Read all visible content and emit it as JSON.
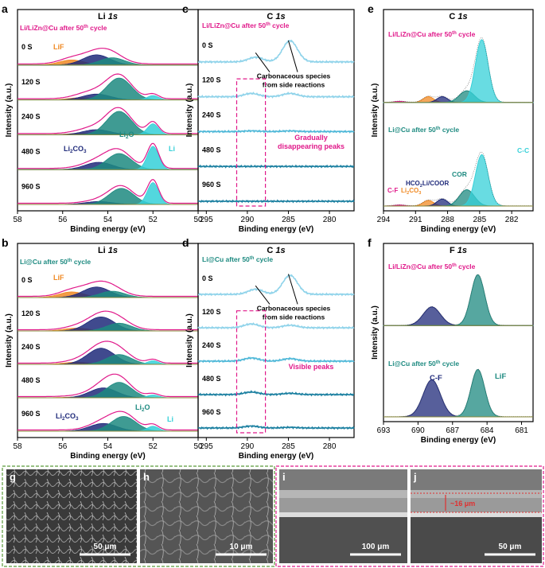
{
  "colors": {
    "pink": "#e0198a",
    "teal": "#1d8a80",
    "navy": "#1f2a7a",
    "orange": "#f08a24",
    "cyan": "#35d0d8",
    "gray_teal": "#6b8e87",
    "light_blue": "#8fd3ea",
    "mid_blue": "#4fb8d8",
    "dark_blue": "#1a7fa0",
    "olive": "#8a8a3a"
  },
  "panel_letters": [
    "a",
    "b",
    "c",
    "d",
    "e",
    "f",
    "g",
    "h",
    "i",
    "j"
  ],
  "chart_data": [
    {
      "id": "a",
      "type": "line",
      "title_main": "Li ",
      "title_orbital": "1s",
      "sample": "Li/LiZn@Cu after 50",
      "sample_sup": "th",
      "sample_tail": " cycle",
      "xlabel": "Binding energy (eV)",
      "ylabel": "Intensity (a.u.)",
      "xlim": [
        58,
        50
      ],
      "xticks": [
        "58",
        "56",
        "54",
        "52",
        "50"
      ],
      "xticks_at": [
        58,
        56,
        54,
        52,
        50
      ],
      "series": [
        {
          "name": "0 S",
          "components": [
            {
              "name": "LiF",
              "center": 55.6,
              "amp": 0.35
            },
            {
              "name": "Li2CO3",
              "center": 54.5,
              "amp": 0.7
            },
            {
              "name": "Li2O",
              "center": 53.8,
              "amp": 0.5
            },
            {
              "name": "Li",
              "center": 52.1,
              "amp": 0.0
            }
          ]
        },
        {
          "name": "120 S",
          "components": [
            {
              "name": "LiF",
              "center": 55.2,
              "amp": 0.15
            },
            {
              "name": "Li2CO3",
              "center": 54.5,
              "amp": 0.4
            },
            {
              "name": "Li2O",
              "center": 53.5,
              "amp": 1.5
            },
            {
              "name": "Li",
              "center": 52.0,
              "amp": 0.3
            }
          ]
        },
        {
          "name": "240 S",
          "components": [
            {
              "name": "LiF",
              "center": 55.2,
              "amp": 0.1
            },
            {
              "name": "Li2CO3",
              "center": 54.5,
              "amp": 0.35
            },
            {
              "name": "Li2O",
              "center": 53.5,
              "amp": 1.6
            },
            {
              "name": "Li",
              "center": 52.0,
              "amp": 0.75
            }
          ]
        },
        {
          "name": "480 S",
          "components": [
            {
              "name": "LiF",
              "center": 55.2,
              "amp": 0.05
            },
            {
              "name": "Li2CO3",
              "center": 54.4,
              "amp": 0.5
            },
            {
              "name": "Li2O",
              "center": 53.5,
              "amp": 1.1
            },
            {
              "name": "Li",
              "center": 52.0,
              "amp": 1.6
            }
          ]
        },
        {
          "name": "960 S",
          "components": [
            {
              "name": "LiF",
              "center": 55.2,
              "amp": 0.0
            },
            {
              "name": "Li2CO3",
              "center": 54.4,
              "amp": 0.2
            },
            {
              "name": "Li2O",
              "center": 53.4,
              "amp": 1.1
            },
            {
              "name": "Li",
              "center": 52.0,
              "amp": 1.5
            }
          ]
        }
      ],
      "labels": {
        "LiF": "LiF",
        "Li2CO3_main": "Li",
        "Li2CO3_sub": "2",
        "Li2CO3_tail": "CO",
        "Li2CO3_sub2": "3",
        "Li2O_main": "Li",
        "Li2O_sub": "2",
        "Li2O_tail": "O",
        "Li": "Li"
      }
    },
    {
      "id": "b",
      "type": "line",
      "title_main": "Li ",
      "title_orbital": "1s",
      "sample": "Li@Cu after 50",
      "sample_sup": "th",
      "sample_tail": " cycle",
      "xlabel": "Binding energy (eV)",
      "ylabel": "Intensity (a.u.)",
      "xlim": [
        58,
        50
      ],
      "xticks": [
        "58",
        "56",
        "54",
        "52",
        "50"
      ],
      "xticks_at": [
        58,
        56,
        54,
        52,
        50
      ],
      "series": [
        {
          "name": "0 S",
          "components": [
            {
              "name": "LiF",
              "center": 55.6,
              "amp": 0.4
            },
            {
              "name": "Li2CO3",
              "center": 54.5,
              "amp": 0.75
            },
            {
              "name": "Li2O",
              "center": 53.8,
              "amp": 0.45
            },
            {
              "name": "Li",
              "center": 52.1,
              "amp": 0.0
            }
          ]
        },
        {
          "name": "120 S",
          "components": [
            {
              "name": "LiF",
              "center": 55.4,
              "amp": 0.2
            },
            {
              "name": "Li2CO3",
              "center": 54.3,
              "amp": 1.0
            },
            {
              "name": "Li2O",
              "center": 53.5,
              "amp": 0.55
            },
            {
              "name": "Li",
              "center": 52.0,
              "amp": 0.0
            }
          ]
        },
        {
          "name": "240 S",
          "components": [
            {
              "name": "LiF",
              "center": 55.4,
              "amp": 0.15
            },
            {
              "name": "Li2CO3",
              "center": 54.3,
              "amp": 1.15
            },
            {
              "name": "Li2O",
              "center": 53.5,
              "amp": 0.7
            },
            {
              "name": "Li",
              "center": 52.0,
              "amp": 0.25
            }
          ]
        },
        {
          "name": "480 S",
          "components": [
            {
              "name": "LiF",
              "center": 55.4,
              "amp": 0.05
            },
            {
              "name": "Li2CO3",
              "center": 54.2,
              "amp": 0.7
            },
            {
              "name": "Li2O",
              "center": 53.5,
              "amp": 1.1
            },
            {
              "name": "Li",
              "center": 52.0,
              "amp": 0.2
            }
          ]
        },
        {
          "name": "960 S",
          "components": [
            {
              "name": "LiF",
              "center": 55.4,
              "amp": 0.0
            },
            {
              "name": "Li2CO3",
              "center": 54.2,
              "amp": 0.55
            },
            {
              "name": "Li2O",
              "center": 53.3,
              "amp": 1.05
            },
            {
              "name": "Li",
              "center": 52.0,
              "amp": 0.35
            }
          ]
        }
      ],
      "labels": {
        "LiF": "LiF",
        "Li2CO3_main": "Li",
        "Li2CO3_sub": "2",
        "Li2CO3_tail": "CO",
        "Li2CO3_sub2": "3",
        "Li2O_main": "Li",
        "Li2O_sub": "2",
        "Li2O_tail": "O",
        "Li": "Li"
      }
    },
    {
      "id": "c",
      "type": "line",
      "title_main": "C ",
      "title_orbital": "1s",
      "sample": "Li/LiZn@Cu after 50",
      "sample_sup": "th",
      "sample_tail": " cycle",
      "xlabel": "Binding energy (eV)",
      "ylabel": "Intensity (a.u.)",
      "xlim": [
        296,
        277
      ],
      "xticks": [
        "295",
        "290",
        "285",
        "280"
      ],
      "xticks_at": [
        295,
        290,
        285,
        280
      ],
      "series": [
        {
          "name": "0 S",
          "peaks": [
            {
              "center": 289.0,
              "amp": 0.35
            },
            {
              "center": 284.8,
              "amp": 1.6
            }
          ]
        },
        {
          "name": "120 S",
          "peaks": [
            {
              "center": 289.5,
              "amp": 0.25
            },
            {
              "center": 284.8,
              "amp": 0.25
            }
          ]
        },
        {
          "name": "240 S",
          "peaks": [
            {
              "center": 289.5,
              "amp": 0.05
            },
            {
              "center": 284.8,
              "amp": 0.05
            }
          ]
        },
        {
          "name": "480 S",
          "peaks": [
            {
              "center": 289.5,
              "amp": 0.0
            },
            {
              "center": 284.8,
              "amp": 0.0
            }
          ]
        },
        {
          "name": "960 S",
          "peaks": [
            {
              "center": 289.5,
              "amp": 0.0
            },
            {
              "center": 284.8,
              "amp": 0.0
            }
          ]
        }
      ],
      "annotation": [
        "Carbonaceous species",
        "from side reactions"
      ],
      "note": [
        "Gradually",
        "disappearing peaks"
      ]
    },
    {
      "id": "d",
      "type": "line",
      "title_main": "C ",
      "title_orbital": "1s",
      "sample": "Li@Cu after 50",
      "sample_sup": "th",
      "sample_tail": " cycle",
      "xlabel": "Binding energy (eV)",
      "ylabel": "Intensity (a.u.)",
      "xlim": [
        296,
        277
      ],
      "xticks": [
        "295",
        "290",
        "285",
        "280"
      ],
      "xticks_at": [
        295,
        290,
        285,
        280
      ],
      "series": [
        {
          "name": "0 S",
          "peaks": [
            {
              "center": 289.0,
              "amp": 0.4
            },
            {
              "center": 284.8,
              "amp": 1.5
            }
          ]
        },
        {
          "name": "120 S",
          "peaks": [
            {
              "center": 289.5,
              "amp": 0.3
            },
            {
              "center": 284.8,
              "amp": 0.2
            }
          ]
        },
        {
          "name": "240 S",
          "peaks": [
            {
              "center": 289.5,
              "amp": 0.25
            },
            {
              "center": 284.8,
              "amp": 0.2
            }
          ]
        },
        {
          "name": "480 S",
          "peaks": [
            {
              "center": 289.5,
              "amp": 0.2
            },
            {
              "center": 284.8,
              "amp": 0.1
            }
          ]
        },
        {
          "name": "960 S",
          "peaks": [
            {
              "center": 289.5,
              "amp": 0.15
            },
            {
              "center": 284.8,
              "amp": 0.05
            }
          ]
        }
      ],
      "annotation": [
        "Carbonaceous species",
        "from side reactions"
      ],
      "note": [
        "Visible  peaks"
      ]
    },
    {
      "id": "e",
      "type": "line",
      "title_main": "C ",
      "title_orbital": "1s",
      "xlabel": "Binding energy (eV)",
      "ylabel": "Intensity (a.u.)",
      "xlim": [
        294,
        280
      ],
      "xticks": [
        "294",
        "291",
        "288",
        "285",
        "282"
      ],
      "xticks_at": [
        294,
        291,
        288,
        285,
        282
      ],
      "series": [
        {
          "name": "Li/LiZn@Cu after 50th cycle",
          "components": [
            {
              "name": "C-F",
              "center": 292.5,
              "amp": 0.03
            },
            {
              "name": "Li2CO3",
              "center": 289.8,
              "amp": 0.15
            },
            {
              "name": "HCO2Li/COOR",
              "center": 288.5,
              "amp": 0.15
            },
            {
              "name": "COR",
              "center": 286.2,
              "amp": 0.3
            },
            {
              "name": "C-C",
              "center": 284.8,
              "amp": 1.6
            }
          ]
        },
        {
          "name": "Li@Cu after 50th cycle",
          "components": [
            {
              "name": "C-F",
              "center": 292.5,
              "amp": 0.02
            },
            {
              "name": "Li2CO3",
              "center": 289.8,
              "amp": 0.12
            },
            {
              "name": "HCO2Li/COOR",
              "center": 288.5,
              "amp": 0.15
            },
            {
              "name": "COR",
              "center": 286.2,
              "amp": 0.35
            },
            {
              "name": "C-C",
              "center": 284.8,
              "amp": 1.1
            }
          ]
        }
      ],
      "sample_top": "Li/LiZn@Cu after 50",
      "sample_top_sup": "th",
      "sample_top_tail": " cycle",
      "sample_bot": "Li@Cu after 50",
      "sample_bot_sup": "th",
      "sample_bot_tail": " cycle",
      "labels": {
        "CC": "C-C",
        "COR": "COR",
        "HCO": "HCO",
        "HCO_sub": "2",
        "HCO_tail": "Li/COOR",
        "CF": "C-F",
        "Li2CO3_main": "Li",
        "Li2CO3_sub": "2",
        "Li2CO3_tail": "CO",
        "Li2CO3_sub2": "3"
      }
    },
    {
      "id": "f",
      "type": "line",
      "title_main": "F ",
      "title_orbital": "1s",
      "xlabel": "Binding energy (eV)",
      "ylabel": "Intensity (a.u.)",
      "xlim": [
        693,
        680
      ],
      "xticks": [
        "693",
        "690",
        "687",
        "684",
        "681"
      ],
      "xticks_at": [
        693,
        690,
        687,
        684,
        681
      ],
      "series": [
        {
          "name": "Li/LiZn@Cu after 50th cycle",
          "components": [
            {
              "name": "C-F",
              "center": 688.8,
              "amp": 0.55
            },
            {
              "name": "LiF",
              "center": 684.8,
              "amp": 1.5
            }
          ]
        },
        {
          "name": "Li@Cu after 50th cycle",
          "components": [
            {
              "name": "C-F",
              "center": 688.8,
              "amp": 0.9
            },
            {
              "name": "LiF",
              "center": 684.8,
              "amp": 1.15
            }
          ]
        }
      ],
      "sample_top": "Li/LiZn@Cu after 50",
      "sample_top_sup": "th",
      "sample_top_tail": " cycle",
      "sample_bot": "Li@Cu after 50",
      "sample_bot_sup": "th",
      "sample_bot_tail": " cycle",
      "labels": {
        "CF": "C-F",
        "LiF": "LiF"
      }
    }
  ],
  "sem": {
    "g": {
      "scale": "50 μm"
    },
    "h": {
      "scale": "10 μm"
    },
    "i": {
      "scale": "100 μm"
    },
    "j": {
      "scale": "50 μm",
      "thickness": "~16 μm"
    }
  }
}
